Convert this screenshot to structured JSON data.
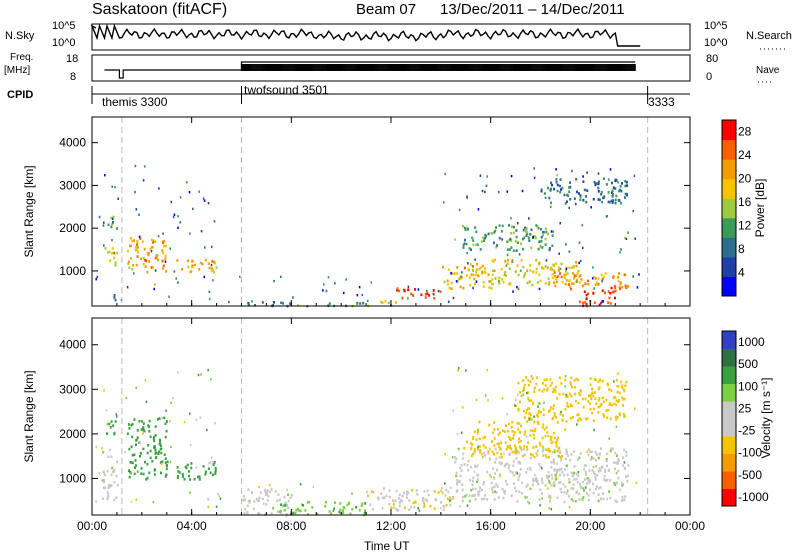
{
  "header": {
    "station": "Saskatoon (fitACF)",
    "beam": "Beam 07",
    "dates": "13/Dec/2011 – 14/Dec/2011"
  },
  "sidebar_labels": {
    "nsky": "N.Sky",
    "freq": "Freq.",
    "freq_unit": "[MHz]",
    "cpid": "CPID",
    "nsearch": "N.Search",
    "nave": "Nave"
  },
  "strips": {
    "nsky_ticks": [
      "10^5",
      "10^0"
    ],
    "nsearch_ticks": [
      "10^5",
      "10^0"
    ],
    "freq_ticks": [
      "18",
      "8"
    ],
    "nave_ticks": [
      "80",
      "0"
    ],
    "cpid_segments": [
      {
        "label": "themis 3300",
        "start_hour": 0.0
      },
      {
        "label": "twofsound 3501",
        "start_hour": 6.0
      },
      {
        "label": "3333",
        "start_hour": 22.3
      }
    ]
  },
  "colors": {
    "power_scale": [
      "#0000ff",
      "#1f3fa8",
      "#2e6e8c",
      "#3a9a5a",
      "#9ccc3c",
      "#f5c400",
      "#f59a00",
      "#f56000",
      "#ff0000"
    ],
    "velocity_scale": [
      "#3040c0",
      "#2e7040",
      "#3aa040",
      "#7cd040",
      "#c8c8c8",
      "#c8c8c8",
      "#f5c400",
      "#f59a00",
      "#f56000",
      "#ff0000"
    ]
  },
  "chart_data": [
    {
      "type": "heatmap",
      "title": "",
      "xlabel": "Time UT",
      "ylabel": "Slant Range [km]",
      "xticks": [
        "00:00",
        "04:00",
        "08:00",
        "12:00",
        "16:00",
        "20:00",
        "00:00"
      ],
      "xtick_hours": [
        0,
        4,
        8,
        12,
        16,
        20,
        24
      ],
      "yticks": [
        1000,
        2000,
        3000,
        4000
      ],
      "xlim": [
        0,
        24
      ],
      "ylim": [
        180,
        4600
      ],
      "colorbar": {
        "label": "Power [dB]",
        "ticks": [
          4,
          8,
          12,
          16,
          20,
          24,
          28
        ],
        "range": [
          0,
          30
        ]
      },
      "blobs": [
        {
          "t0": 0.5,
          "t1": 1.0,
          "r0": 1100,
          "r1": 1600,
          "value": 16
        },
        {
          "t0": 0.6,
          "t1": 1.0,
          "r0": 2000,
          "r1": 2400,
          "value": 12
        },
        {
          "t0": 0.8,
          "t1": 1.0,
          "r0": 300,
          "r1": 600,
          "value": 8
        },
        {
          "t0": 1.4,
          "t1": 3.0,
          "r0": 1000,
          "r1": 1800,
          "value": 20
        },
        {
          "t0": 2.0,
          "t1": 2.8,
          "r0": 1250,
          "r1": 1400,
          "value": 26
        },
        {
          "t0": 3.2,
          "t1": 5.0,
          "r0": 1000,
          "r1": 1300,
          "value": 20
        },
        {
          "t0": 6.0,
          "t1": 8.0,
          "r0": 200,
          "r1": 320,
          "value": 8
        },
        {
          "t0": 8.0,
          "t1": 11.0,
          "r0": 200,
          "r1": 280,
          "value": 12
        },
        {
          "t0": 11.0,
          "t1": 12.2,
          "r0": 200,
          "r1": 330,
          "value": 16
        },
        {
          "t0": 12.2,
          "t1": 14.0,
          "r0": 380,
          "r1": 620,
          "value": 28
        },
        {
          "t0": 14.0,
          "t1": 16.0,
          "r0": 600,
          "r1": 1200,
          "value": 20
        },
        {
          "t0": 16.0,
          "t1": 19.5,
          "r0": 700,
          "r1": 1300,
          "value": 18
        },
        {
          "t0": 14.8,
          "t1": 18.5,
          "r0": 1500,
          "r1": 2100,
          "value": 12
        },
        {
          "t0": 18.5,
          "t1": 21.5,
          "r0": 600,
          "r1": 1000,
          "value": 22
        },
        {
          "t0": 19.5,
          "t1": 21.0,
          "r0": 200,
          "r1": 650,
          "value": 28
        },
        {
          "t0": 18.0,
          "t1": 21.5,
          "r0": 2600,
          "r1": 3200,
          "value": 8
        }
      ]
    },
    {
      "type": "heatmap",
      "title": "",
      "xlabel": "Time UT",
      "ylabel": "Slant Range [km]",
      "xticks": [
        "00:00",
        "04:00",
        "08:00",
        "12:00",
        "16:00",
        "20:00",
        "00:00"
      ],
      "xtick_hours": [
        0,
        4,
        8,
        12,
        16,
        20,
        24
      ],
      "yticks": [
        1000,
        2000,
        3000,
        4000
      ],
      "xlim": [
        0,
        24
      ],
      "ylim": [
        180,
        4600
      ],
      "colorbar": {
        "label": "Velocity [m s⁻¹]",
        "ticks": [
          1000,
          500,
          100,
          25,
          -25,
          -100,
          -500,
          -1000
        ]
      },
      "blobs": [
        {
          "t0": 0.4,
          "t1": 1.0,
          "r0": 500,
          "r1": 1700,
          "value": 0
        },
        {
          "t0": 0.5,
          "t1": 1.0,
          "r0": 2000,
          "r1": 2400,
          "value": 100
        },
        {
          "t0": 1.4,
          "t1": 3.0,
          "r0": 1000,
          "r1": 2400,
          "value": 200
        },
        {
          "t0": 3.2,
          "t1": 5.0,
          "r0": 1000,
          "r1": 1400,
          "value": 150
        },
        {
          "t0": 6.0,
          "t1": 8.0,
          "r0": 200,
          "r1": 800,
          "value": 0
        },
        {
          "t0": 7.5,
          "t1": 11.0,
          "r0": 200,
          "r1": 500,
          "value": 80
        },
        {
          "t0": 11.0,
          "t1": 14.5,
          "r0": 300,
          "r1": 800,
          "value": -80
        },
        {
          "t0": 14.5,
          "t1": 21.5,
          "r0": 500,
          "r1": 1700,
          "value": 0
        },
        {
          "t0": 15.0,
          "t1": 19.0,
          "r0": 1500,
          "r1": 2300,
          "value": -200
        },
        {
          "t0": 17.0,
          "t1": 21.5,
          "r0": 2300,
          "r1": 3300,
          "value": -300
        }
      ]
    }
  ]
}
